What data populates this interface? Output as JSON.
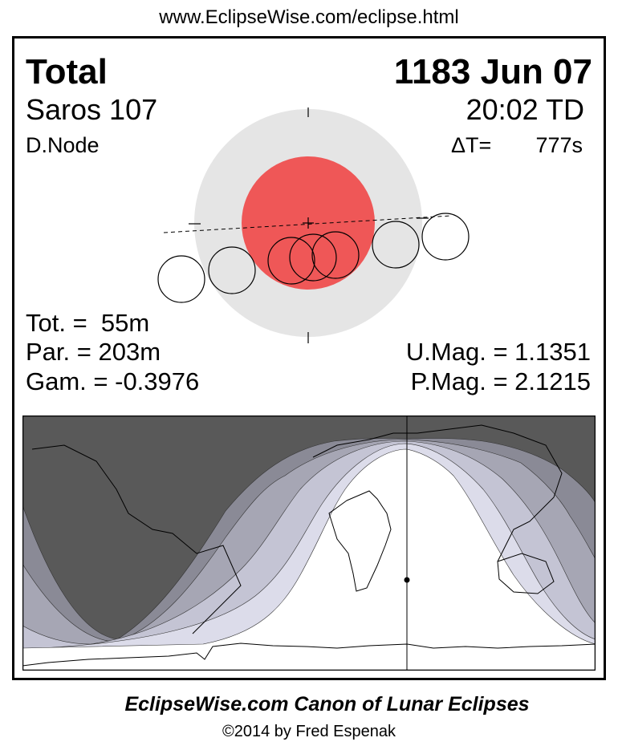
{
  "header": {
    "url": "www.EclipseWise.com/eclipse.html"
  },
  "eclipse": {
    "type": "Total",
    "date": "1183 Jun 07",
    "saros": "Saros 107",
    "time": "20:02 TD",
    "node": "D.Node",
    "delta_t_label": "ΔT=",
    "delta_t_value": "777s",
    "totality": "Tot. =  55m",
    "partial": "Par. = 203m",
    "gamma": "Gam. = -0.3976",
    "umbral_mag": "U.Mag. = 1.1351",
    "penumbral_mag": "P.Mag. = 2.1215"
  },
  "colors": {
    "umbra": "#ef5757",
    "penumbra": "#e5e5e5",
    "night": "#595959",
    "bands": [
      "#8a8a96",
      "#a6a6b4",
      "#c4c4d4",
      "#dcdcea"
    ]
  },
  "footer": {
    "title": "EclipseWise.com Canon of Lunar Eclipses",
    "copyright": "©2014 by Fred Espenak"
  }
}
